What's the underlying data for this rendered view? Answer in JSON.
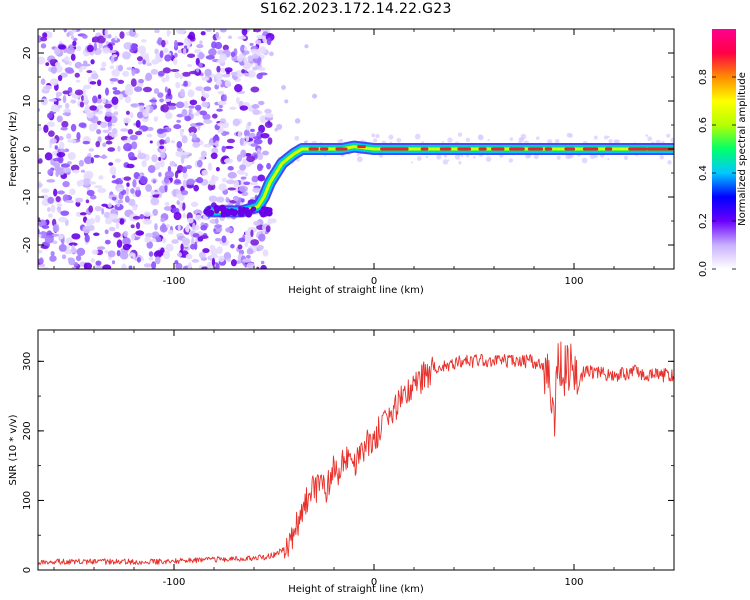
{
  "title": "S162.2023.172.14.22.G23",
  "colors": {
    "accent": "#e8312b",
    "cloud": "#7a1fd8",
    "track_outer": "#1d2fe0",
    "track_core": "#e8232b",
    "colorbar": [
      "#ffffff",
      "#c8b0ff",
      "#6a00ff",
      "#0000ff",
      "#00c8ff",
      "#00ff6a",
      "#b4ff00",
      "#ffff00",
      "#ff8c00",
      "#ff0044",
      "#ff0090"
    ]
  },
  "chart_data": [
    {
      "type": "heatmap",
      "title": "S162.2023.172.14.22.G23",
      "xlabel": "Height of straight line (km)",
      "ylabel": "Frequency (Hz)",
      "xlim": [
        -168,
        150
      ],
      "ylim": [
        -25,
        25
      ],
      "xticks": [
        -100,
        0,
        100
      ],
      "xtick_labels": [
        "-100",
        "0",
        "100"
      ],
      "yticks": [
        20,
        10,
        0,
        -10,
        -20
      ],
      "ytick_labels": [
        "20",
        "10",
        "0",
        "-10",
        "-20"
      ],
      "noise_region_x": [
        -168,
        -52
      ],
      "track": {
        "x": [
          -82,
          -75,
          -66,
          -58,
          -55,
          -52,
          -49,
          -46,
          -43,
          -40,
          -36,
          -32,
          -28,
          -22,
          -16,
          -10,
          0,
          10,
          20,
          40,
          60,
          80,
          100,
          120,
          150
        ],
        "y": [
          -13,
          -13,
          -13,
          -12,
          -10,
          -7,
          -5,
          -3,
          -2,
          -1,
          0,
          0,
          0,
          0,
          0,
          0.5,
          0,
          0,
          0,
          0,
          0,
          0,
          0,
          0,
          0
        ]
      },
      "colorbar": {
        "label": "Normalized spectral amplitude",
        "range": [
          0,
          1
        ],
        "ticks": [
          0.0,
          0.2,
          0.4,
          0.6,
          0.8
        ],
        "tick_labels": [
          "0.0",
          "0.2",
          "0.4",
          "0.6",
          "0.8"
        ]
      },
      "grid": false
    },
    {
      "type": "line",
      "xlabel": "Height of straight line (km)",
      "ylabel": "SNR (10 * v/v)",
      "xlim": [
        -168,
        150
      ],
      "ylim": [
        0,
        345
      ],
      "xticks": [
        -100,
        0,
        100
      ],
      "xtick_labels": [
        "-100",
        "0",
        "100"
      ],
      "yticks": [
        0,
        100,
        200,
        300
      ],
      "ytick_labels": [
        "0",
        "100",
        "200",
        "300"
      ],
      "grid": false,
      "series": [
        {
          "color": "#e8312b",
          "x": [
            -168,
            -150,
            -130,
            -110,
            -90,
            -70,
            -55,
            -50,
            -45,
            -40,
            -38,
            -35,
            -32,
            -30,
            -28,
            -26,
            -24,
            -22,
            -20,
            -18,
            -15,
            -12,
            -10,
            -5,
            0,
            5,
            10,
            15,
            20,
            25,
            30,
            35,
            40,
            50,
            60,
            70,
            80,
            85,
            88,
            90,
            92,
            95,
            98,
            100,
            102,
            105,
            110,
            120,
            130,
            140,
            150
          ],
          "y": [
            12,
            12,
            12,
            12,
            14,
            16,
            18,
            22,
            30,
            50,
            70,
            90,
            110,
            120,
            115,
            125,
            110,
            130,
            150,
            135,
            155,
            170,
            150,
            175,
            190,
            210,
            230,
            250,
            265,
            280,
            290,
            295,
            298,
            300,
            300,
            300,
            300,
            290,
            270,
            210,
            300,
            280,
            300,
            290,
            260,
            285,
            285,
            280,
            285,
            280,
            280
          ]
        }
      ]
    }
  ]
}
